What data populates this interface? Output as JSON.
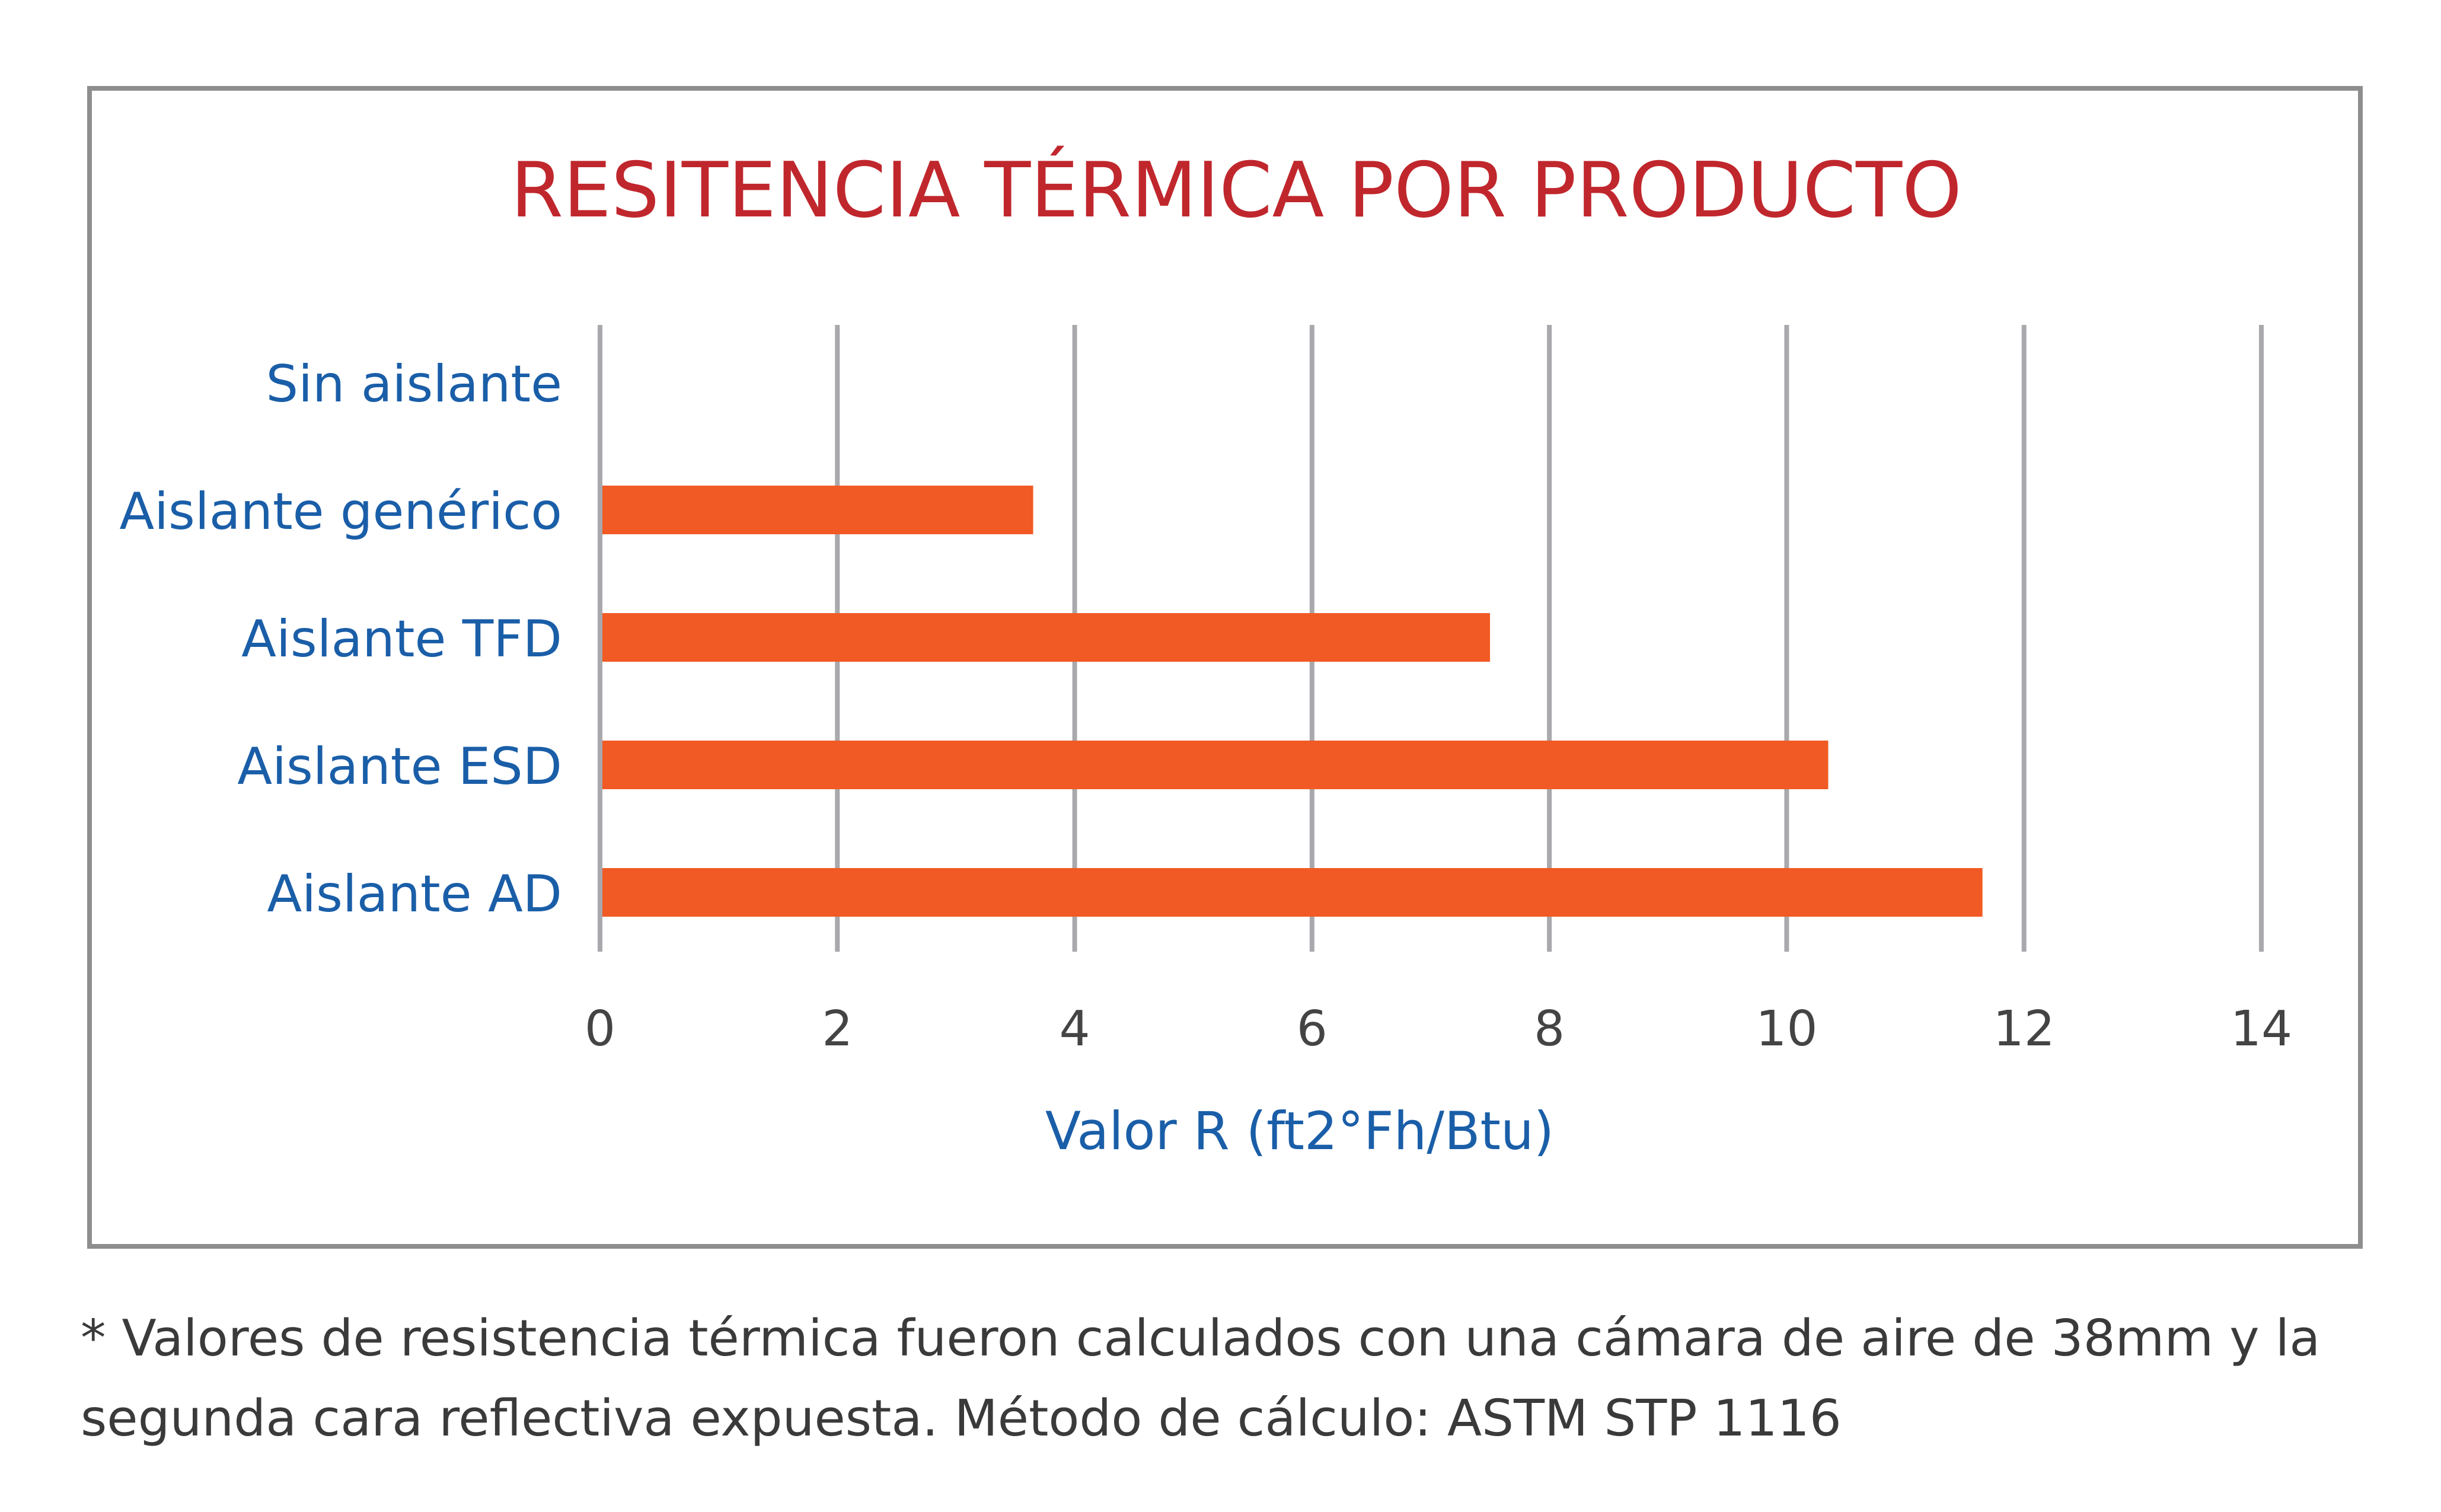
{
  "chart_data": {
    "type": "bar",
    "orientation": "horizontal",
    "title": "RESITENCIA TÉRMICA POR PRODUCTO",
    "xlabel": "Valor R (ft2°Fh/Btu)",
    "ylabel": "",
    "categories": [
      "Sin aislante",
      "Aislante genérico",
      "Aislante TFD",
      "Aislante ESD",
      "Aislante AD"
    ],
    "values": [
      0,
      3.65,
      7.5,
      10.35,
      11.65
    ],
    "xlim": [
      0,
      14
    ],
    "xticks": [
      "0",
      "2",
      "4",
      "6",
      "8",
      "10",
      "12",
      "14"
    ],
    "grid": true,
    "legend": "none"
  },
  "colors": {
    "bar": "#f15a24",
    "title": "#c0272d",
    "category_label": "#1a5ea8",
    "axis_label": "#1a5ea8",
    "tick_label": "#444444",
    "grid": "#a8a8ad",
    "frame": "#8e8e8e",
    "footnote": "#3a3a3a"
  },
  "footnote": {
    "line1": "* Valores de resistencia térmica fueron calculados con una cámara de aire de 38mm y la",
    "line2": "segunda cara reflectiva expuesta. Método de cálculo: ASTM STP 1116"
  }
}
